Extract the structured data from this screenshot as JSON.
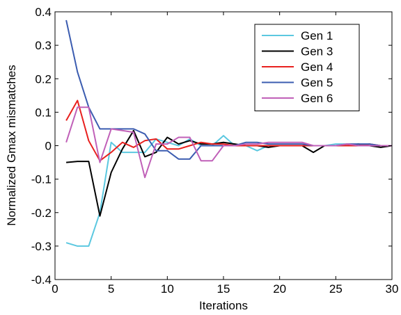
{
  "chart_data": {
    "type": "line",
    "title": "",
    "xlabel": "Iterations",
    "ylabel": "Normalized Gmax mismatches",
    "xlim": [
      0,
      30
    ],
    "ylim": [
      -0.4,
      0.4
    ],
    "xticks": [
      0,
      5,
      10,
      15,
      20,
      25,
      30
    ],
    "xtick_labels": [
      "0",
      "5",
      "10",
      "15",
      "20",
      "25",
      "30"
    ],
    "yticks": [
      -0.4,
      -0.3,
      -0.2,
      -0.1,
      0,
      0.1,
      0.2,
      0.3,
      0.4
    ],
    "ytick_labels": [
      "-0.4",
      "-0.3",
      "-0.2",
      "-0.1",
      "0",
      "0.1",
      "0.2",
      "0.3",
      "0.4"
    ],
    "grid": false,
    "legend_position": "top-right",
    "x": [
      1,
      2,
      3,
      4,
      5,
      6,
      7,
      8,
      9,
      10,
      11,
      12,
      13,
      14,
      15,
      16,
      17,
      18,
      19,
      20,
      21,
      22,
      23,
      24,
      25,
      26,
      27,
      28,
      29,
      30
    ],
    "series": [
      {
        "name": "Gen 1",
        "color": "#5bc8e0",
        "values": [
          -0.29,
          -0.3,
          -0.3,
          -0.2,
          0.01,
          -0.02,
          -0.02,
          -0.02,
          0.02,
          0.01,
          0.0,
          0.02,
          0.0,
          0.0,
          0.03,
          0.0,
          0.0,
          -0.015,
          0.0,
          0.0,
          0.0,
          0.0,
          0.0,
          0.0,
          0.005,
          0.005,
          0.0,
          0.0,
          0.0,
          0.0
        ]
      },
      {
        "name": "Gen 3",
        "color": "#000000",
        "values": [
          -0.05,
          -0.047,
          -0.047,
          -0.21,
          -0.08,
          -0.01,
          0.045,
          -0.033,
          -0.02,
          0.025,
          0.005,
          0.015,
          0.005,
          0.005,
          0.01,
          0.005,
          0.0,
          0.0,
          -0.005,
          0.0,
          0.0,
          0.0,
          -0.02,
          0.0,
          0.0,
          0.0,
          0.005,
          0.0,
          -0.005,
          0.0
        ]
      },
      {
        "name": "Gen 4",
        "color": "#e8201e",
        "values": [
          0.075,
          0.135,
          0.015,
          -0.045,
          -0.02,
          0.01,
          -0.005,
          0.015,
          0.02,
          -0.01,
          -0.01,
          0.0,
          0.01,
          0.005,
          0.005,
          0.0,
          0.0,
          0.0,
          0.0,
          0.0,
          0.0,
          0.0,
          0.0,
          0.0,
          0.0,
          0.0,
          0.0,
          0.005,
          0.0,
          0.0
        ]
      },
      {
        "name": "Gen 5",
        "color": "#3b5cb0",
        "values": [
          0.375,
          0.22,
          0.115,
          0.05,
          0.05,
          0.05,
          0.05,
          0.035,
          -0.015,
          -0.015,
          -0.04,
          -0.04,
          0.0,
          0.0,
          0.0,
          0.0,
          0.01,
          0.01,
          0.005,
          0.005,
          0.005,
          0.005,
          0.0,
          0.0,
          0.0,
          0.005,
          0.005,
          0.005,
          0.0,
          0.0
        ]
      },
      {
        "name": "Gen 6",
        "color": "#c060b8",
        "values": [
          0.01,
          0.115,
          0.115,
          -0.05,
          0.05,
          0.045,
          0.04,
          -0.095,
          0.005,
          0.005,
          0.025,
          0.025,
          -0.045,
          -0.045,
          0.0,
          0.0,
          0.005,
          0.005,
          0.01,
          0.01,
          0.01,
          0.01,
          0.0,
          0.0,
          0.0,
          0.005,
          0.0,
          0.0,
          0.0,
          0.0
        ]
      }
    ]
  }
}
